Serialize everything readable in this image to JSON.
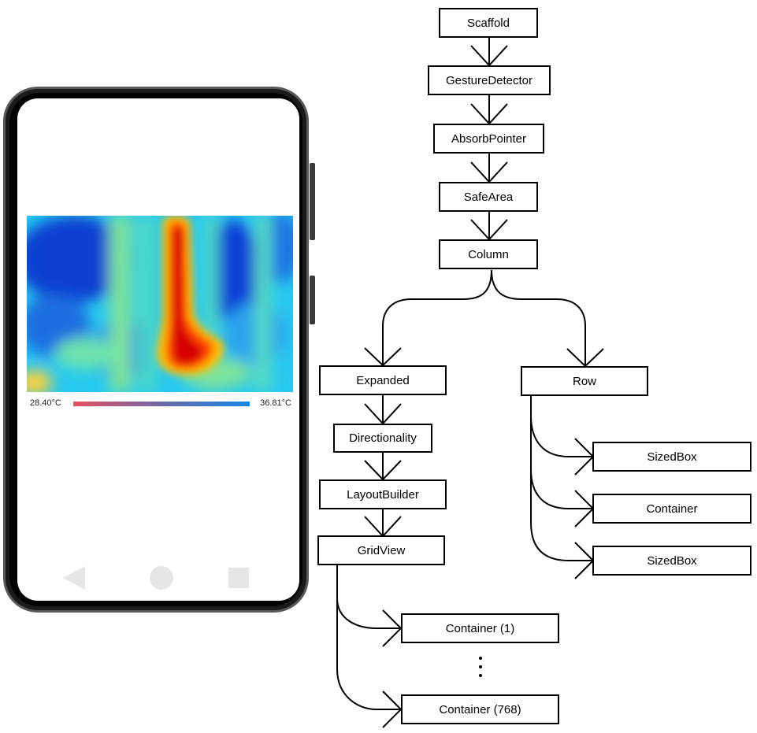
{
  "phone": {
    "temperature_scale": {
      "min_label": "28.40°C",
      "max_label": "36.81°C",
      "gradient_colors": [
        "#e8505f",
        "#6a6aa8",
        "#1688e6"
      ]
    },
    "navigation": {
      "back_icon": "back-triangle-icon",
      "home_icon": "home-circle-icon",
      "recent_icon": "recent-square-icon"
    }
  },
  "tree": {
    "nodes": {
      "scaffold": "Scaffold",
      "gesture_detector": "GestureDetector",
      "absorb_pointer": "AbsorbPointer",
      "safe_area": "SafeArea",
      "column": "Column",
      "expanded": "Expanded",
      "row": "Row",
      "directionality": "Directionality",
      "layout_builder": "LayoutBuilder",
      "grid_view": "GridView",
      "sized_box_1": "SizedBox",
      "container": "Container",
      "sized_box_2": "SizedBox",
      "container_first": "Container (1)",
      "container_last": "Container (768)"
    }
  }
}
